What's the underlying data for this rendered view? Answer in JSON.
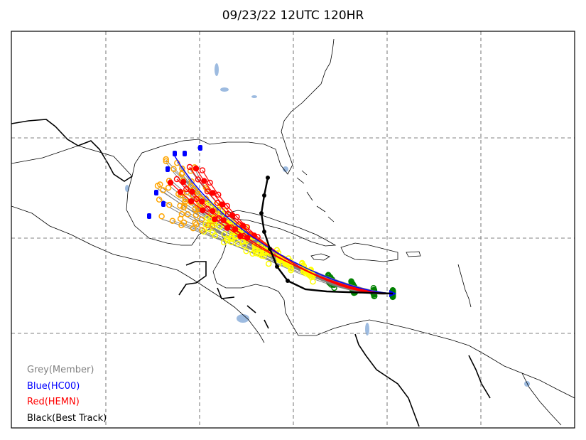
{
  "title": "09/23/22 12UTC 120HR",
  "legend": [
    {
      "label": "Grey(Member)",
      "color": "#808080"
    },
    {
      "label": "Blue(HC00)",
      "color": "#0000ff"
    },
    {
      "label": "Red(HEMN)",
      "color": "#ff0000"
    },
    {
      "label": "Black(Best Track)",
      "color": "#000000"
    }
  ],
  "colors": {
    "gridline": "#808080",
    "coastline": "#000000",
    "lakes": "#9dbbe0",
    "member_track": "#808080",
    "hc00_track": "#0000ff",
    "hemn_track": "#ff0000",
    "best_track": "#000000",
    "marker_early": "#008000",
    "marker_mid": "#ffff00",
    "marker_late": "#ffa500"
  }
}
